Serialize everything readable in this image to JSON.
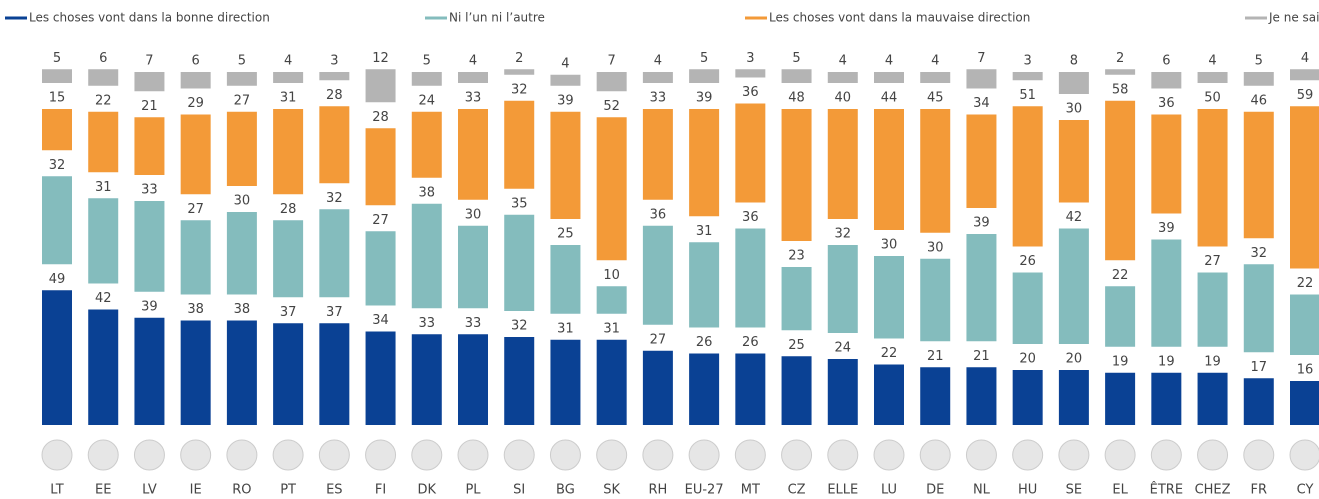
{
  "chart_data": {
    "type": "stacked_bar",
    "categories": [
      "LT",
      "EE",
      "LV",
      "IE",
      "RO",
      "PT",
      "ES",
      "FI",
      "DK",
      "PL",
      "SI",
      "BG",
      "SK",
      "RH",
      "EU-27",
      "MT",
      "CZ",
      "ELLE",
      "LU",
      "DE",
      "NL",
      "HU",
      "SE",
      "EL",
      "ÊTRE",
      "CHEZ",
      "FR",
      "CY"
    ],
    "series": [
      {
        "name": "Les choses vont dans la bonne direction",
        "color": "#0a4194",
        "values": [
          49,
          42,
          39,
          38,
          38,
          37,
          37,
          34,
          33,
          33,
          32,
          31,
          31,
          27,
          26,
          26,
          25,
          24,
          22,
          21,
          21,
          20,
          20,
          19,
          19,
          19,
          17,
          16
        ]
      },
      {
        "name": "Ni l’un ni l’autre",
        "color": "#84bcbd",
        "values": [
          32,
          31,
          33,
          27,
          30,
          28,
          32,
          27,
          38,
          30,
          35,
          25,
          10,
          36,
          31,
          36,
          23,
          32,
          30,
          30,
          39,
          26,
          42,
          22,
          39,
          27,
          32,
          22
        ]
      },
      {
        "name": "Les choses vont dans la mauvaise direction",
        "color": "#f39a38",
        "values": [
          15,
          22,
          21,
          29,
          27,
          31,
          28,
          28,
          24,
          33,
          32,
          39,
          52,
          33,
          39,
          36,
          48,
          40,
          44,
          45,
          34,
          51,
          30,
          58,
          36,
          50,
          46,
          59
        ]
      },
      {
        "name": "Je ne sais pas",
        "color": "#b4b4b4",
        "values": [
          5,
          6,
          7,
          6,
          5,
          4,
          3,
          12,
          5,
          4,
          2,
          4,
          7,
          4,
          5,
          3,
          5,
          4,
          4,
          4,
          7,
          3,
          8,
          2,
          6,
          4,
          5,
          4
        ]
      }
    ],
    "legend": "top"
  }
}
